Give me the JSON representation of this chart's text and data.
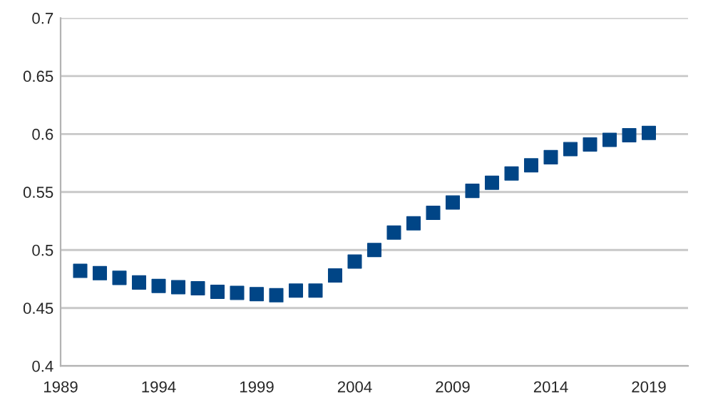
{
  "chart_data": {
    "type": "scatter",
    "marker": "square",
    "color": "#004586",
    "x": [
      1990,
      1991,
      1992,
      1993,
      1994,
      1995,
      1996,
      1997,
      1998,
      1999,
      2000,
      2001,
      2002,
      2003,
      2004,
      2005,
      2006,
      2007,
      2008,
      2009,
      2010,
      2011,
      2012,
      2013,
      2014,
      2015,
      2016,
      2017,
      2018,
      2019
    ],
    "values": [
      0.482,
      0.48,
      0.476,
      0.472,
      0.469,
      0.468,
      0.467,
      0.464,
      0.463,
      0.462,
      0.461,
      0.465,
      0.465,
      0.478,
      0.49,
      0.5,
      0.515,
      0.523,
      0.532,
      0.541,
      0.551,
      0.558,
      0.566,
      0.573,
      0.58,
      0.587,
      0.591,
      0.595,
      0.599,
      0.601
    ],
    "xlim": [
      1989,
      2021
    ],
    "xticks": [
      1989,
      1994,
      1999,
      2004,
      2009,
      2014,
      2019
    ],
    "ylim": [
      0.4,
      0.7
    ],
    "yticks": [
      0.4,
      0.45,
      0.5,
      0.55,
      0.6,
      0.65,
      0.7
    ],
    "grid": "y"
  }
}
